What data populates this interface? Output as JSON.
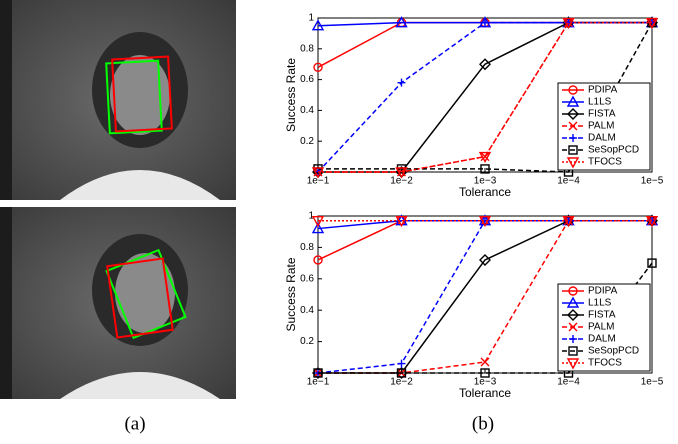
{
  "chart_data": [
    {
      "type": "line",
      "xlabel": "Tolerance",
      "ylabel": "Success Rate",
      "categories": [
        "1e−1",
        "1e−2",
        "1e−3",
        "1e−4",
        "1e−5"
      ],
      "ylim": [
        0,
        1
      ],
      "yticks": [
        0.2,
        0.4,
        0.6,
        0.8,
        1
      ],
      "legend": "lower right",
      "series": [
        {
          "name": "PDIPA",
          "color": "#ff0000",
          "style": "solid",
          "marker": "circle",
          "values": [
            0.68,
            0.97,
            0.97,
            0.97,
            0.97
          ]
        },
        {
          "name": "L1LS",
          "color": "#0000ff",
          "style": "solid",
          "marker": "triangle",
          "values": [
            0.95,
            0.97,
            0.97,
            0.97,
            0.97
          ]
        },
        {
          "name": "FISTA",
          "color": "#000000",
          "style": "solid",
          "marker": "diamond",
          "values": [
            0,
            0,
            0.7,
            0.97,
            0.97
          ]
        },
        {
          "name": "PALM",
          "color": "#ff0000",
          "style": "dashed",
          "marker": "x",
          "values": [
            0,
            0,
            0.1,
            0.97,
            0.97
          ]
        },
        {
          "name": "DALM",
          "color": "#0000ff",
          "style": "dashed",
          "marker": "plus",
          "values": [
            0,
            0.58,
            0.97,
            0.97,
            0.97
          ]
        },
        {
          "name": "SeSopPCD",
          "color": "#000000",
          "style": "dashed",
          "marker": "square",
          "values": [
            0.02,
            0.02,
            0.02,
            0,
            0.97
          ]
        },
        {
          "name": "TFOCS",
          "color": "#ff0000",
          "style": "dotted",
          "marker": "triangle-down",
          "values": [
            0,
            0,
            0.1,
            0.97,
            0.97
          ]
        }
      ]
    },
    {
      "type": "line",
      "xlabel": "Tolerance",
      "ylabel": "Success Rate",
      "categories": [
        "1e−1",
        "1e−2",
        "1e−3",
        "1e−4",
        "1e−5"
      ],
      "ylim": [
        0,
        1
      ],
      "yticks": [
        0.2,
        0.4,
        0.6,
        0.8,
        1
      ],
      "legend": "lower right",
      "series": [
        {
          "name": "PDIPA",
          "color": "#ff0000",
          "style": "solid",
          "marker": "circle",
          "values": [
            0.72,
            0.97,
            0.97,
            0.97,
            0.97
          ]
        },
        {
          "name": "L1LS",
          "color": "#0000ff",
          "style": "solid",
          "marker": "triangle",
          "values": [
            0.92,
            0.97,
            0.97,
            0.97,
            0.97
          ]
        },
        {
          "name": "FISTA",
          "color": "#000000",
          "style": "solid",
          "marker": "diamond",
          "values": [
            0,
            0,
            0.72,
            0.97,
            0.97
          ]
        },
        {
          "name": "PALM",
          "color": "#ff0000",
          "style": "dashed",
          "marker": "x",
          "values": [
            0,
            0,
            0.07,
            0.97,
            0.97
          ]
        },
        {
          "name": "DALM",
          "color": "#0000ff",
          "style": "dashed",
          "marker": "plus",
          "values": [
            0,
            0.06,
            0.97,
            0.97,
            0.97
          ]
        },
        {
          "name": "SeSopPCD",
          "color": "#000000",
          "style": "dashed",
          "marker": "square",
          "values": [
            0,
            0,
            0,
            0,
            0.7
          ]
        },
        {
          "name": "TFOCS",
          "color": "#ff0000",
          "style": "dotted",
          "marker": "triangle-down",
          "values": [
            0.97,
            0.97,
            0.97,
            0.97,
            0.97
          ]
        }
      ]
    }
  ],
  "captions": [
    "(a)",
    "(b)"
  ]
}
